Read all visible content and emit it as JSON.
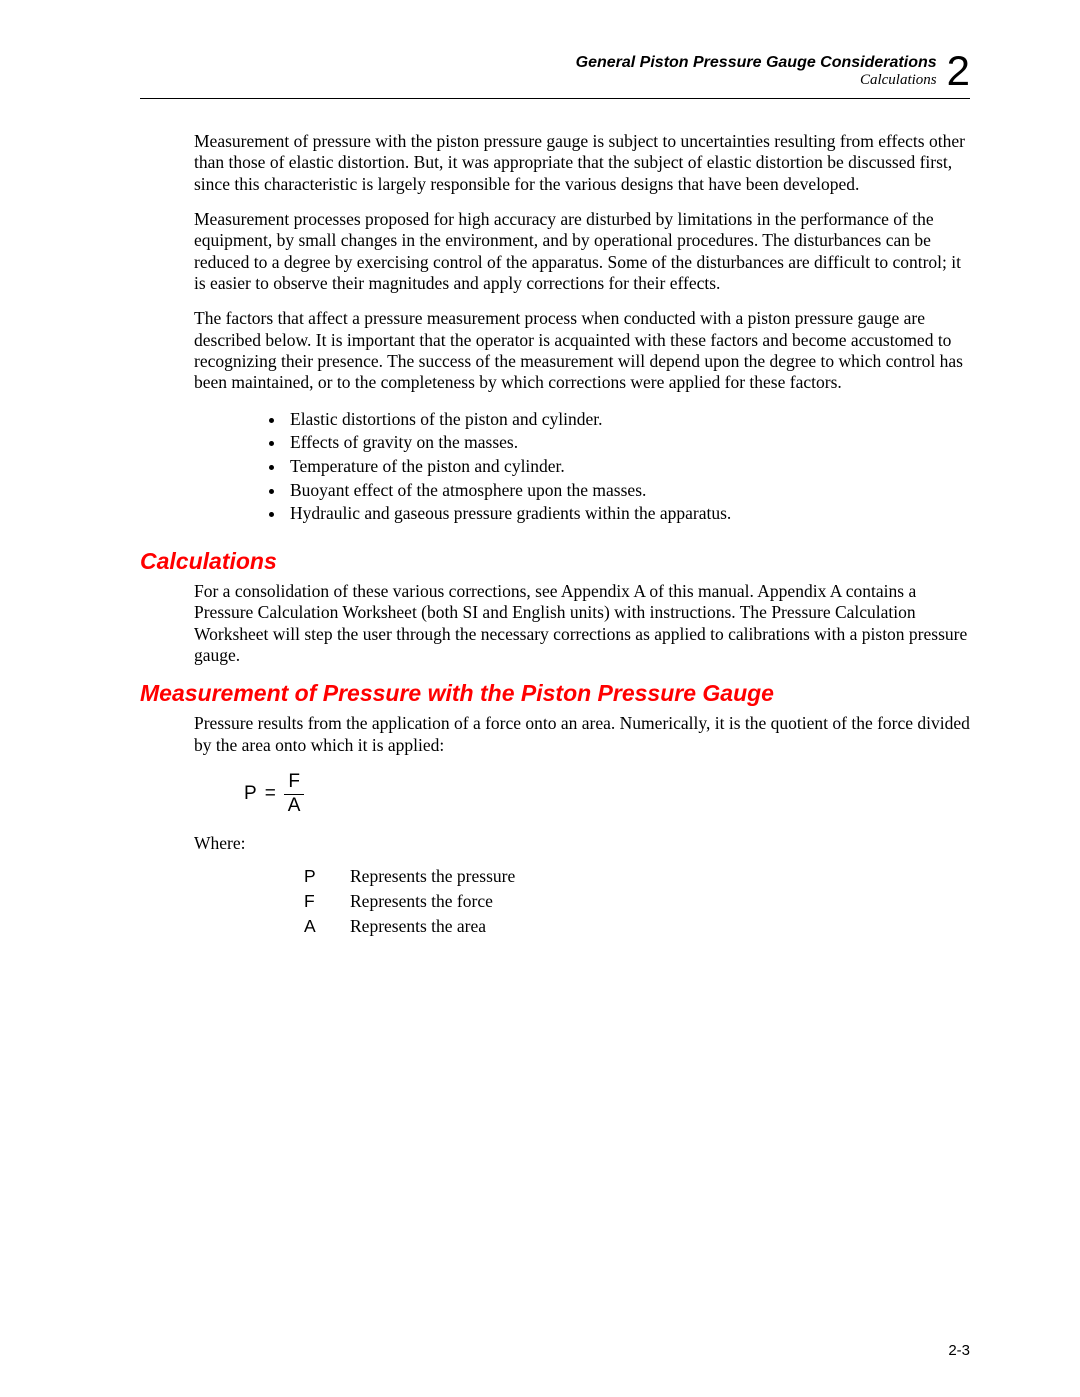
{
  "header": {
    "title": "General Piston Pressure Gauge Considerations",
    "subtitle": "Calculations",
    "chapter_number": "2"
  },
  "paragraphs": {
    "p1": "Measurement of pressure with the piston pressure gauge is subject to uncertainties resulting from effects other than those of elastic distortion. But, it was appropriate that the subject of elastic distortion be discussed first, since this characteristic is largely responsible for the various designs that have been developed.",
    "p2": "Measurement processes proposed for high accuracy are disturbed by limitations in the performance of the equipment, by small changes in the environment, and by operational procedures. The disturbances can be reduced to a degree by exercising control of the apparatus. Some of the disturbances are difficult to control; it is easier to observe their magnitudes and apply corrections for their effects.",
    "p3": "The factors that affect a pressure measurement process when conducted with a piston pressure gauge are described below. It is important that the operator is acquainted with these factors and become accustomed to recognizing their presence. The success of the measurement will depend upon the degree to which control has been maintained, or to the completeness by which corrections were applied for these factors.",
    "calc_body": "For a consolidation of these various corrections, see Appendix A of this manual. Appendix A contains a Pressure Calculation Worksheet (both SI and English units) with instructions. The Pressure Calculation Worksheet will step the user through the necessary corrections as applied to calibrations with a piston pressure gauge.",
    "meas_body": "Pressure results from the application of a force onto an area. Numerically, it is the quotient of the force divided by the area onto which it is applied:"
  },
  "factors": [
    "Elastic distortions of the piston and cylinder.",
    "Effects of gravity on the masses.",
    "Temperature of the piston and cylinder.",
    "Buoyant effect of the atmosphere upon the masses.",
    "Hydraulic and gaseous pressure gradients within the apparatus."
  ],
  "sections": {
    "calculations": "Calculations",
    "measurement": "Measurement of Pressure with the Piston Pressure Gauge"
  },
  "formula": {
    "lhs": "P",
    "eq": "=",
    "numerator": "F",
    "denominator": "A"
  },
  "where_label": "Where:",
  "definitions": [
    {
      "symbol": "P",
      "text": "Represents the pressure"
    },
    {
      "symbol": "F",
      "text": "Represents the force"
    },
    {
      "symbol": "A",
      "text": "Represents the area"
    }
  ],
  "page_number": "2-3"
}
